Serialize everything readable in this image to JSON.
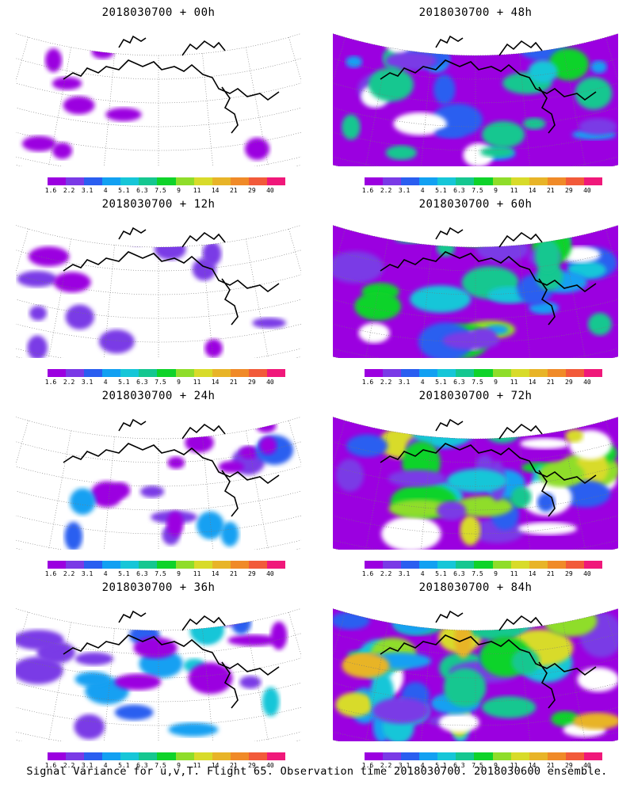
{
  "panels": [
    {
      "title": "2018030700 + 00h",
      "intensity": 0
    },
    {
      "title": "2018030700 + 48h",
      "intensity": 4
    },
    {
      "title": "2018030700 + 12h",
      "intensity": 1
    },
    {
      "title": "2018030700 + 60h",
      "intensity": 5
    },
    {
      "title": "2018030700 + 24h",
      "intensity": 2
    },
    {
      "title": "2018030700 + 72h",
      "intensity": 6
    },
    {
      "title": "2018030700 + 36h",
      "intensity": 3
    },
    {
      "title": "2018030700 + 84h",
      "intensity": 7
    }
  ],
  "colorbar": {
    "labels": [
      "1.6",
      "2.2",
      "3.1",
      "4",
      "5.1",
      "6.3",
      "7.5",
      "9",
      "11",
      "14",
      "21",
      "29",
      "40"
    ],
    "colors": [
      "#9b00e0",
      "#7a3ae6",
      "#2a5ef0",
      "#12a0f2",
      "#16c6d8",
      "#15c790",
      "#0fd32a",
      "#8fdd2a",
      "#d8db2a",
      "#e8b428",
      "#f08a28",
      "#f25a3a",
      "#f0187a"
    ]
  },
  "footer": "Signal Variance for u,v,T. Flight 65. Observation time 2018030700. 2018030600 ensemble."
}
